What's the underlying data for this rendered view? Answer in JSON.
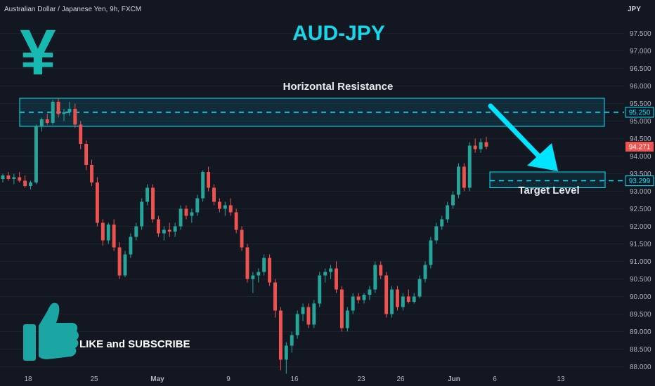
{
  "header": {
    "symbol_description": "Australian Dollar / Japanese Yen, 9h, FXCM",
    "currency": "JPY"
  },
  "overlay": {
    "title": "AUD-JPY",
    "yen_symbol": "¥",
    "resistance_label": "Horizontal Resistance",
    "target_label": "Target Level",
    "cta": "LIKE and SUBSCRIBE",
    "thumb_icon": "thumbs-up-icon"
  },
  "colors": {
    "background": "#131722",
    "bull": "#26a69a",
    "bear": "#ef5350",
    "accent": "#00e5ff",
    "title": "#18d7e8",
    "grid": "#1e222d"
  },
  "chart_data": {
    "type": "candlestick",
    "symbol": "AUDJPY",
    "interval": "9h",
    "source": "FXCM",
    "y_range": [
      87.75,
      98.05
    ],
    "y_ticks": [
      "97.500",
      "97.000",
      "96.500",
      "96.000",
      "95.500",
      "95.000",
      "94.500",
      "94.000",
      "93.500",
      "93.000",
      "92.500",
      "92.000",
      "91.500",
      "91.000",
      "90.500",
      "90.000",
      "89.500",
      "89.000",
      "88.500",
      "88.000"
    ],
    "x_ticks": [
      "18",
      "25",
      "May",
      "9",
      "16",
      "23",
      "26",
      "Jun",
      "6",
      "13"
    ],
    "last_price_label": "94.271",
    "resistance_level_label": "95.250",
    "target_level_label": "93.299",
    "resistance_level": 95.25,
    "resistance_zone": [
      94.85,
      95.65
    ],
    "target_level": 93.299,
    "target_zone": [
      93.1,
      93.55
    ],
    "ohlc": [
      [
        93.35,
        93.5,
        93.25,
        93.45
      ],
      [
        93.45,
        93.55,
        93.3,
        93.35
      ],
      [
        93.35,
        93.5,
        93.2,
        93.4
      ],
      [
        93.4,
        93.55,
        93.25,
        93.3
      ],
      [
        93.3,
        93.45,
        93.1,
        93.15
      ],
      [
        93.15,
        93.3,
        93.05,
        93.25
      ],
      [
        93.25,
        94.9,
        93.2,
        94.85
      ],
      [
        94.85,
        95.1,
        94.7,
        95.05
      ],
      [
        95.05,
        95.2,
        94.9,
        94.95
      ],
      [
        94.95,
        95.6,
        94.9,
        95.55
      ],
      [
        95.55,
        95.65,
        95.1,
        95.2
      ],
      [
        95.2,
        95.35,
        95.0,
        95.25
      ],
      [
        95.25,
        95.55,
        95.15,
        95.35
      ],
      [
        95.35,
        95.5,
        94.8,
        94.9
      ],
      [
        94.9,
        95.0,
        94.2,
        94.35
      ],
      [
        94.35,
        94.45,
        93.6,
        93.75
      ],
      [
        93.75,
        93.9,
        93.15,
        93.25
      ],
      [
        93.25,
        93.4,
        92.0,
        92.1
      ],
      [
        92.1,
        92.2,
        91.45,
        91.6
      ],
      [
        91.6,
        92.1,
        91.5,
        92.05
      ],
      [
        92.05,
        92.2,
        91.3,
        91.4
      ],
      [
        91.4,
        91.55,
        90.5,
        90.6
      ],
      [
        90.6,
        91.3,
        90.55,
        91.2
      ],
      [
        91.2,
        91.8,
        91.1,
        91.7
      ],
      [
        91.7,
        92.1,
        91.6,
        92.0
      ],
      [
        92.0,
        92.8,
        91.9,
        92.7
      ],
      [
        92.7,
        93.2,
        92.6,
        93.1
      ],
      [
        93.1,
        93.2,
        92.1,
        92.2
      ],
      [
        92.2,
        92.3,
        91.7,
        91.8
      ],
      [
        91.8,
        92.0,
        91.6,
        91.9
      ],
      [
        91.9,
        92.1,
        91.7,
        91.85
      ],
      [
        91.85,
        92.1,
        91.7,
        92.0
      ],
      [
        92.0,
        92.6,
        91.9,
        92.5
      ],
      [
        92.5,
        92.6,
        92.2,
        92.3
      ],
      [
        92.3,
        92.5,
        92.1,
        92.4
      ],
      [
        92.4,
        92.9,
        92.3,
        92.8
      ],
      [
        92.8,
        93.6,
        92.7,
        93.55
      ],
      [
        93.55,
        93.7,
        93.0,
        93.1
      ],
      [
        93.1,
        93.2,
        92.6,
        92.7
      ],
      [
        92.7,
        92.8,
        92.4,
        92.5
      ],
      [
        92.5,
        92.7,
        92.3,
        92.6
      ],
      [
        92.6,
        92.8,
        92.3,
        92.4
      ],
      [
        92.4,
        92.5,
        91.8,
        91.9
      ],
      [
        91.9,
        92.0,
        91.3,
        91.4
      ],
      [
        91.4,
        91.5,
        90.4,
        90.5
      ],
      [
        90.5,
        90.7,
        90.1,
        90.6
      ],
      [
        90.6,
        90.8,
        90.4,
        90.7
      ],
      [
        90.7,
        91.2,
        90.6,
        91.1
      ],
      [
        91.1,
        91.2,
        90.3,
        90.4
      ],
      [
        90.4,
        90.5,
        89.4,
        89.6
      ],
      [
        89.6,
        89.7,
        87.9,
        88.2
      ],
      [
        88.2,
        88.7,
        87.8,
        88.6
      ],
      [
        88.6,
        89.0,
        88.4,
        88.9
      ],
      [
        88.9,
        89.6,
        88.8,
        89.5
      ],
      [
        89.5,
        89.8,
        89.3,
        89.7
      ],
      [
        89.7,
        89.8,
        89.1,
        89.2
      ],
      [
        89.2,
        89.9,
        89.1,
        89.8
      ],
      [
        89.8,
        90.7,
        89.7,
        90.6
      ],
      [
        90.6,
        90.8,
        90.4,
        90.7
      ],
      [
        90.7,
        90.9,
        90.5,
        90.8
      ],
      [
        90.8,
        91.0,
        90.1,
        90.2
      ],
      [
        90.2,
        90.3,
        89.0,
        89.1
      ],
      [
        89.1,
        89.7,
        89.0,
        89.6
      ],
      [
        89.6,
        90.1,
        89.5,
        90.0
      ],
      [
        90.0,
        90.1,
        89.8,
        89.9
      ],
      [
        89.9,
        90.1,
        89.8,
        90.05
      ],
      [
        90.05,
        90.3,
        89.9,
        90.2
      ],
      [
        90.2,
        91.0,
        90.1,
        90.9
      ],
      [
        90.9,
        91.0,
        90.5,
        90.6
      ],
      [
        90.6,
        90.7,
        89.4,
        89.5
      ],
      [
        89.5,
        90.3,
        89.4,
        90.2
      ],
      [
        90.2,
        90.3,
        89.6,
        89.7
      ],
      [
        89.7,
        90.1,
        89.6,
        90.0
      ],
      [
        90.0,
        90.2,
        89.8,
        89.85
      ],
      [
        89.85,
        90.1,
        89.8,
        90.0
      ],
      [
        90.0,
        90.6,
        89.95,
        90.5
      ],
      [
        90.5,
        91.0,
        90.4,
        90.9
      ],
      [
        90.9,
        91.7,
        90.8,
        91.6
      ],
      [
        91.6,
        92.1,
        91.5,
        92.0
      ],
      [
        92.0,
        92.3,
        91.9,
        92.2
      ],
      [
        92.2,
        92.7,
        92.1,
        92.6
      ],
      [
        92.6,
        93.0,
        92.5,
        92.9
      ],
      [
        92.9,
        93.8,
        92.8,
        93.7
      ],
      [
        93.7,
        93.8,
        93.0,
        93.1
      ],
      [
        93.1,
        94.4,
        93.0,
        94.3
      ],
      [
        94.3,
        94.5,
        94.1,
        94.2
      ],
      [
        94.2,
        94.5,
        94.1,
        94.4
      ],
      [
        94.4,
        94.55,
        94.2,
        94.271
      ]
    ]
  }
}
